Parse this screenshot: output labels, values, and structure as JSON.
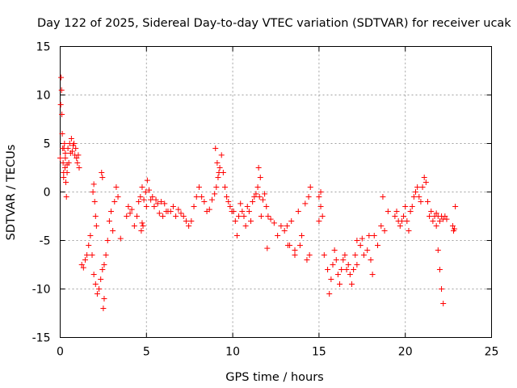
{
  "chart_data": {
    "type": "scatter",
    "title": "Day 122 of 2025, Sidereal Day-to-day VTEC variation (SDTVAR) for receiver ucak",
    "xlabel": "GPS time / hours",
    "ylabel": "SDTVAR / TECUs",
    "xlim": [
      0,
      25
    ],
    "ylim": [
      -15,
      15
    ],
    "xticks": [
      0,
      5,
      10,
      15,
      20,
      25
    ],
    "yticks": [
      -15,
      -10,
      -5,
      0,
      5,
      10,
      15
    ],
    "xtick_labels": [
      "0",
      "5",
      "10",
      "15",
      "20",
      "25"
    ],
    "ytick_labels": [
      "-15",
      "-10",
      "-5",
      "0",
      "5",
      "10",
      "15"
    ],
    "grid": true,
    "marker": "plus",
    "color": "#ff0000",
    "series": [
      {
        "name": "SDTVAR",
        "x": [
          0.0,
          0.03,
          0.05,
          0.08,
          0.1,
          0.12,
          0.15,
          0.17,
          0.2,
          0.22,
          0.25,
          0.28,
          0.3,
          0.33,
          0.36,
          0.4,
          0.45,
          0.5,
          0.55,
          0.6,
          0.65,
          0.7,
          0.75,
          0.8,
          0.85,
          0.9,
          0.95,
          1.0,
          1.05,
          1.1,
          0.2,
          0.3,
          0.4,
          1.25,
          1.35,
          1.45,
          1.55,
          1.65,
          1.75,
          1.85,
          1.95,
          2.05,
          2.15,
          2.25,
          2.35,
          2.45,
          2.55,
          2.65,
          2.75,
          2.85,
          2.95,
          3.05,
          3.15,
          3.25,
          3.35,
          1.9,
          1.95,
          2.0,
          2.05,
          2.1,
          2.4,
          2.45,
          2.5,
          2.55,
          3.5,
          3.85,
          3.95,
          4.05,
          4.15,
          4.3,
          4.45,
          4.55,
          4.65,
          4.75,
          4.85,
          4.95,
          5.05,
          5.15,
          5.25,
          5.35,
          5.45,
          5.55,
          5.65,
          5.75,
          5.85,
          5.95,
          6.05,
          6.15,
          6.25,
          4.7,
          4.75,
          4.8,
          5.0,
          6.4,
          6.55,
          6.7,
          6.85,
          7.0,
          7.15,
          7.3,
          7.45,
          7.6,
          7.75,
          7.9,
          8.05,
          8.2,
          8.35,
          8.5,
          8.65,
          8.8,
          8.95,
          9.05,
          9.15,
          9.25,
          9.35,
          9.45,
          9.55,
          9.65,
          9.75,
          9.85,
          9.95,
          9.0,
          9.1,
          9.2,
          10.05,
          10.15,
          10.25,
          10.35,
          10.45,
          10.55,
          10.65,
          10.75,
          10.85,
          10.95,
          11.05,
          11.15,
          11.25,
          11.35,
          11.45,
          11.55,
          11.65,
          11.75,
          11.85,
          11.95,
          12.05,
          11.5,
          11.6,
          12.0,
          12.2,
          12.4,
          12.6,
          12.8,
          13.0,
          13.2,
          13.4,
          13.6,
          13.8,
          14.0,
          14.2,
          14.4,
          14.5,
          13.15,
          13.3,
          13.6,
          13.9,
          14.3,
          14.45,
          15.0,
          15.1,
          15.3,
          15.5,
          15.6,
          15.7,
          15.8,
          15.9,
          16.0,
          16.1,
          16.2,
          16.3,
          16.4,
          16.5,
          16.6,
          16.7,
          16.8,
          16.9,
          17.0,
          17.2,
          17.4,
          17.6,
          17.8,
          18.0,
          18.2,
          18.4,
          18.6,
          18.8,
          19.0,
          15.0,
          15.1,
          15.2,
          17.1,
          17.2,
          17.5,
          17.9,
          18.1,
          18.7,
          19.4,
          19.5,
          19.6,
          19.7,
          19.8,
          19.9,
          20.0,
          20.1,
          20.2,
          20.3,
          20.4,
          20.5,
          20.6,
          20.7,
          20.8,
          20.9,
          21.0,
          21.1,
          21.2,
          21.3,
          21.4,
          21.5,
          21.6,
          21.7,
          21.8,
          21.9,
          22.0,
          22.1,
          22.2,
          22.3,
          22.4,
          21.8,
          21.9,
          22.0,
          22.1,
          22.2,
          22.75,
          22.8,
          22.85,
          22.9
        ],
        "y": [
          3.5,
          9.0,
          11.8,
          10.5,
          8.0,
          6.0,
          4.5,
          3.0,
          2.0,
          4.5,
          5.0,
          2.5,
          3.5,
          1.0,
          -0.5,
          2.0,
          4.5,
          3.0,
          5.0,
          4.0,
          5.5,
          4.2,
          4.8,
          5.0,
          3.8,
          4.5,
          3.5,
          3.0,
          3.8,
          2.5,
          1.5,
          4.0,
          2.8,
          -7.5,
          -7.8,
          -7.0,
          -6.5,
          -5.5,
          -4.5,
          -6.5,
          -8.5,
          -9.5,
          -10.5,
          -10.0,
          -9.0,
          -8.0,
          -7.5,
          -6.5,
          -5.0,
          -3.0,
          -2.0,
          -4.0,
          -1.0,
          0.5,
          -0.5,
          0.0,
          0.8,
          -1.0,
          -2.5,
          -3.5,
          2.0,
          1.5,
          -12.0,
          -11.0,
          -4.8,
          -2.5,
          -1.5,
          -2.2,
          -1.8,
          -3.5,
          -2.5,
          -1.0,
          -0.5,
          0.5,
          -0.8,
          0.0,
          1.2,
          0.2,
          -0.8,
          -0.5,
          -1.5,
          -0.8,
          -1.2,
          -2.2,
          -1.0,
          -2.5,
          -1.2,
          -2.0,
          -2.0,
          -4.0,
          -3.2,
          -3.5,
          -1.5,
          -2.0,
          -1.5,
          -2.5,
          -1.8,
          -2.2,
          -2.5,
          -3.0,
          -3.5,
          -3.0,
          -1.5,
          -0.5,
          0.5,
          -0.5,
          -1.0,
          -2.0,
          -1.8,
          -0.8,
          -0.2,
          0.5,
          1.5,
          2.5,
          3.8,
          2.0,
          0.5,
          -0.5,
          -1.0,
          -1.5,
          -2.0,
          4.5,
          3.0,
          2.0,
          -2.0,
          -3.0,
          -4.5,
          -2.5,
          -1.2,
          -2.0,
          -2.5,
          -3.5,
          -1.5,
          -2.0,
          -3.0,
          -1.0,
          -0.5,
          -0.2,
          0.5,
          -0.5,
          -2.5,
          -0.8,
          -0.2,
          -1.5,
          -2.5,
          2.5,
          1.5,
          -5.8,
          -2.8,
          -3.2,
          -4.5,
          -3.5,
          -4.0,
          -5.5,
          -3.0,
          -6.0,
          -2.0,
          -4.5,
          -1.2,
          -0.5,
          0.5,
          -3.5,
          -5.5,
          -6.5,
          -5.5,
          -7.0,
          -6.5,
          -3.0,
          -1.5,
          -6.5,
          -8.0,
          -10.5,
          -9.0,
          -7.5,
          -6.0,
          -7.0,
          -8.5,
          -9.5,
          -8.0,
          -7.0,
          -6.5,
          -8.0,
          -7.5,
          -8.5,
          -9.5,
          -8.0,
          -7.5,
          -5.5,
          -6.5,
          -6.0,
          -7.0,
          -4.5,
          -5.5,
          -3.5,
          -4.0,
          -2.0,
          -0.5,
          0.0,
          -2.5,
          -6.5,
          -5.0,
          -4.8,
          -4.5,
          -8.5,
          -0.5,
          -2.5,
          -2.0,
          -3.0,
          -3.5,
          -3.0,
          -2.5,
          -1.5,
          -3.0,
          -4.0,
          -2.0,
          -1.5,
          -0.5,
          0.0,
          0.5,
          -0.5,
          -1.0,
          0.5,
          1.5,
          1.0,
          -1.0,
          -2.5,
          -2.0,
          -3.0,
          -2.5,
          -2.2,
          -2.5,
          -3.0,
          -2.5,
          -2.8,
          -2.5,
          -2.8,
          -3.5,
          -6.0,
          -8.0,
          -10.0,
          -11.5,
          -3.5,
          -4.0,
          -3.8,
          -1.5
        ]
      }
    ]
  }
}
